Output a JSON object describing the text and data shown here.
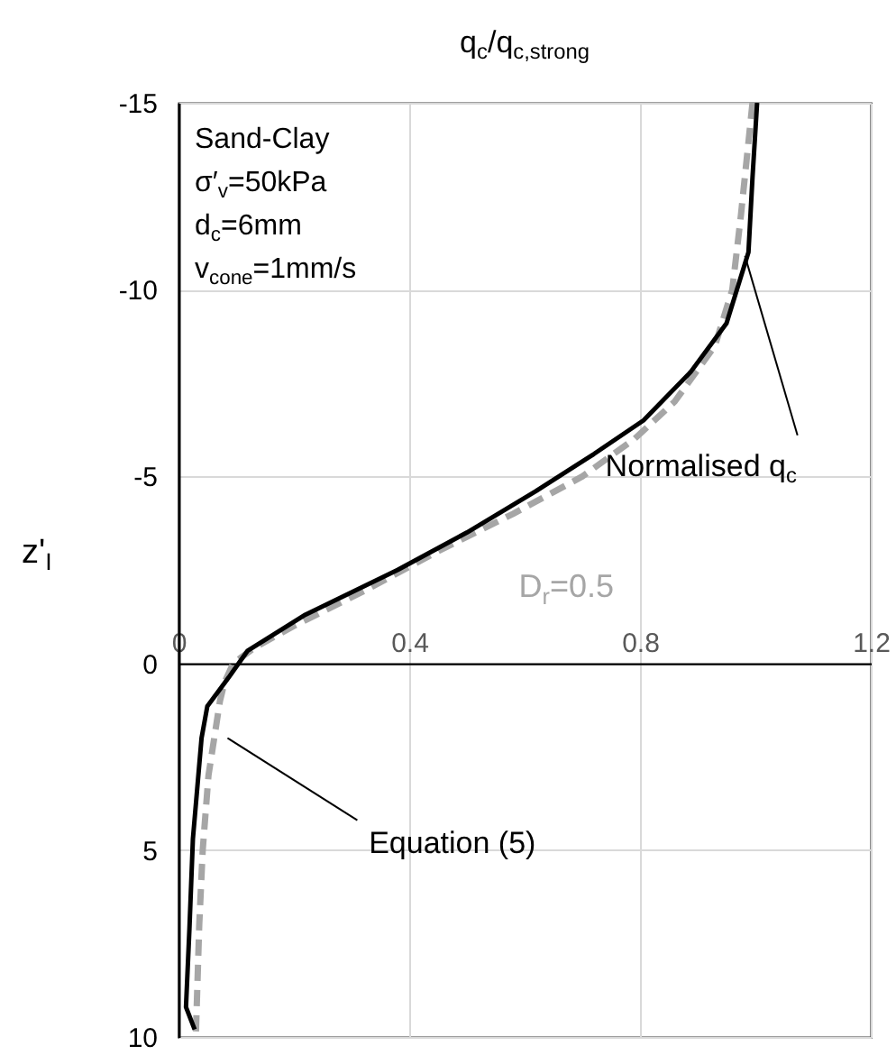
{
  "chart_data": {
    "type": "line",
    "xlabel": "q$_{c}$/q$_{c,strong}$",
    "ylabel": "z'$_{I}$",
    "annotations": [
      "Sand-Clay",
      "σ′$_{v}$=50kPa",
      "d$_{c}$=6mm",
      "v$_{cone}$=1mm/s",
      "D$_{r}$=0.5"
    ],
    "xlim": [
      0,
      1.2
    ],
    "xticks": [
      0,
      0.4,
      0.8,
      1.2
    ],
    "ylim": [
      10,
      -15
    ],
    "yticks": [
      -15,
      -10,
      -5,
      0,
      5,
      10
    ],
    "grid": true,
    "series": [
      {
        "name": "Normalised q$_{c}$",
        "color": "#000000",
        "line_style": "solid",
        "x": [
          1.003,
          0.995,
          0.988,
          0.95,
          0.888,
          0.806,
          0.72,
          0.619,
          0.5,
          0.38,
          0.22,
          0.12,
          0.087,
          0.05,
          0.04,
          0.025,
          0.019,
          0.013,
          0.028
        ],
        "values": [
          -15,
          -13,
          -11,
          -9.1,
          -7.8,
          -6.5,
          -5.6,
          -4.6,
          -3.5,
          -2.5,
          -1.3,
          -0.34,
          0.38,
          1.15,
          2,
          4.7,
          7.1,
          9.2,
          9.8
        ]
      },
      {
        "name": "Equation (5)",
        "color": "#a6a6a6",
        "line_style": "dashed",
        "x": [
          0.995,
          0.975,
          0.96,
          0.93,
          0.86,
          0.79,
          0.7,
          0.58,
          0.45,
          0.33,
          0.2,
          0.13,
          0.095,
          0.08,
          0.072,
          0.062,
          0.052,
          0.042,
          0.036,
          0.032,
          0.03
        ],
        "values": [
          -15,
          -12,
          -10,
          -8.5,
          -7,
          -6,
          -5,
          -4,
          -3,
          -2,
          -1,
          -0.4,
          0,
          0.5,
          1,
          2,
          3,
          5,
          7,
          9,
          10
        ]
      }
    ]
  }
}
